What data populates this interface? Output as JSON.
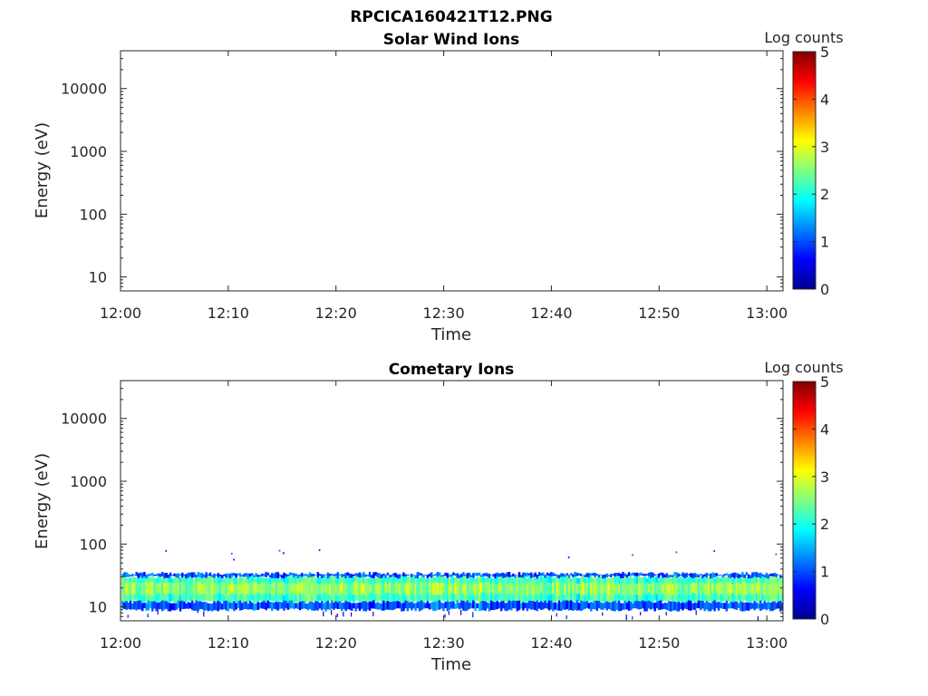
{
  "figure_title": "RPCICA160421T12.PNG",
  "colorbar": {
    "label": "Log counts",
    "ticks": [
      "0",
      "1",
      "2",
      "3",
      "4",
      "5"
    ],
    "range": [
      0,
      5
    ],
    "colormap": "jet",
    "colors": [
      "#00008f",
      "#0000ff",
      "#0080ff",
      "#00ffff",
      "#80ff80",
      "#ffff00",
      "#ff8000",
      "#ff0000",
      "#800000"
    ]
  },
  "chart_data": [
    {
      "type": "heatmap",
      "title": "Solar Wind Ions",
      "xlabel": "Time",
      "ylabel": "Energy (eV)",
      "x_ticks": [
        "12:00",
        "12:10",
        "12:20",
        "12:30",
        "12:40",
        "12:50",
        "13:00"
      ],
      "y_ticks": [
        "10",
        "100",
        "1000",
        "10000"
      ],
      "y_scale": "log",
      "ylim": [
        6,
        40000
      ],
      "xlim": [
        "12:00",
        "13:01:30"
      ],
      "grid": false,
      "bands": []
    },
    {
      "type": "heatmap",
      "title": "Cometary Ions",
      "xlabel": "Time",
      "ylabel": "Energy (eV)",
      "x_ticks": [
        "12:00",
        "12:10",
        "12:20",
        "12:30",
        "12:40",
        "12:50",
        "13:00"
      ],
      "y_ticks": [
        "10",
        "100",
        "1000",
        "10000"
      ],
      "y_scale": "log",
      "ylim": [
        6,
        40000
      ],
      "xlim": [
        "12:00",
        "13:01:30"
      ],
      "grid": false,
      "bands": [
        {
          "energy_min": 12,
          "energy_max": 30,
          "log_counts": 2.2,
          "description": "core"
        },
        {
          "energy_min": 16,
          "energy_max": 24,
          "log_counts": 2.6,
          "description": "peak"
        },
        {
          "energy_min": 9,
          "energy_max": 12,
          "log_counts": 1.0,
          "description": "lower edge"
        },
        {
          "energy_min": 30,
          "energy_max": 34,
          "log_counts": 1.0,
          "description": "upper edge"
        }
      ]
    }
  ]
}
